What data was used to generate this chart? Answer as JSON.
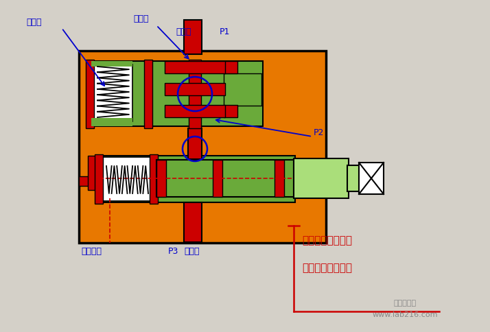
{
  "bg_color": "#d4d0c8",
  "orange": "#E87800",
  "red": "#CC0000",
  "green": "#6aaa3a",
  "light_green": "#aade7a",
  "white": "#FFFFFF",
  "black": "#000000",
  "blue": "#0000CC",
  "red_text": "#CC0000",
  "gray": "#888888",
  "labels": {
    "jie_liu": "节流口",
    "jian_ya": "减压口",
    "jin_you": "进油口",
    "p1": "P1",
    "p2": "P2",
    "p3": "P3",
    "xie_lou": "泄露油口",
    "chu_you": "出油口",
    "text1": "当出口压力降底时",
    "text2": "当出口压力升高时",
    "watermark1": "中实仪信网",
    "watermark2": "www.lab216.com"
  }
}
